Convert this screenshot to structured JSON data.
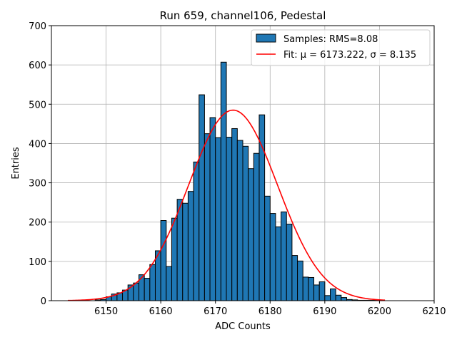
{
  "chart_data": {
    "type": "bar",
    "title": "Run 659, channel106, Pedestal",
    "xlabel": "ADC Counts",
    "ylabel": "Entries",
    "xlim": [
      6140,
      6210
    ],
    "ylim": [
      0,
      700
    ],
    "xticks": [
      6150,
      6160,
      6170,
      6180,
      6190,
      6200,
      6210
    ],
    "yticks": [
      0,
      100,
      200,
      300,
      400,
      500,
      600,
      700
    ],
    "grid": true,
    "legend_position": "top-right",
    "bin_width": 1,
    "bins": {
      "x": [
        6148,
        6149,
        6150,
        6151,
        6152,
        6153,
        6154,
        6155,
        6156,
        6157,
        6158,
        6159,
        6160,
        6161,
        6162,
        6163,
        6164,
        6165,
        6166,
        6167,
        6168,
        6169,
        6170,
        6171,
        6172,
        6173,
        6174,
        6175,
        6176,
        6177,
        6178,
        6179,
        6180,
        6181,
        6182,
        6183,
        6184,
        6185,
        6186,
        6187,
        6188,
        6189,
        6190,
        6191,
        6192,
        6193,
        6194,
        6195,
        6196,
        6197,
        6198,
        6199
      ],
      "values": [
        2,
        3,
        10,
        17,
        20,
        27,
        40,
        45,
        66,
        57,
        92,
        127,
        204,
        87,
        210,
        258,
        248,
        278,
        353,
        524,
        425,
        466,
        415,
        607,
        416,
        438,
        408,
        393,
        336,
        375,
        473,
        266,
        222,
        188,
        226,
        195,
        115,
        101,
        60,
        59,
        40,
        48,
        13,
        30,
        14,
        8,
        3,
        2,
        1,
        1,
        1,
        1
      ]
    },
    "series": [
      {
        "name": "Samples: RMS=8.08",
        "type": "bar",
        "color": "#1f77b4",
        "edgecolor": "#000000"
      },
      {
        "name": "Fit: μ = 6173.222, σ = 8.135",
        "type": "line",
        "color": "#ff0000",
        "model": "gaussian",
        "mu": 6173.222,
        "sigma": 8.135,
        "amplitude": 485,
        "x_range": [
          6143,
          6201
        ]
      }
    ]
  }
}
